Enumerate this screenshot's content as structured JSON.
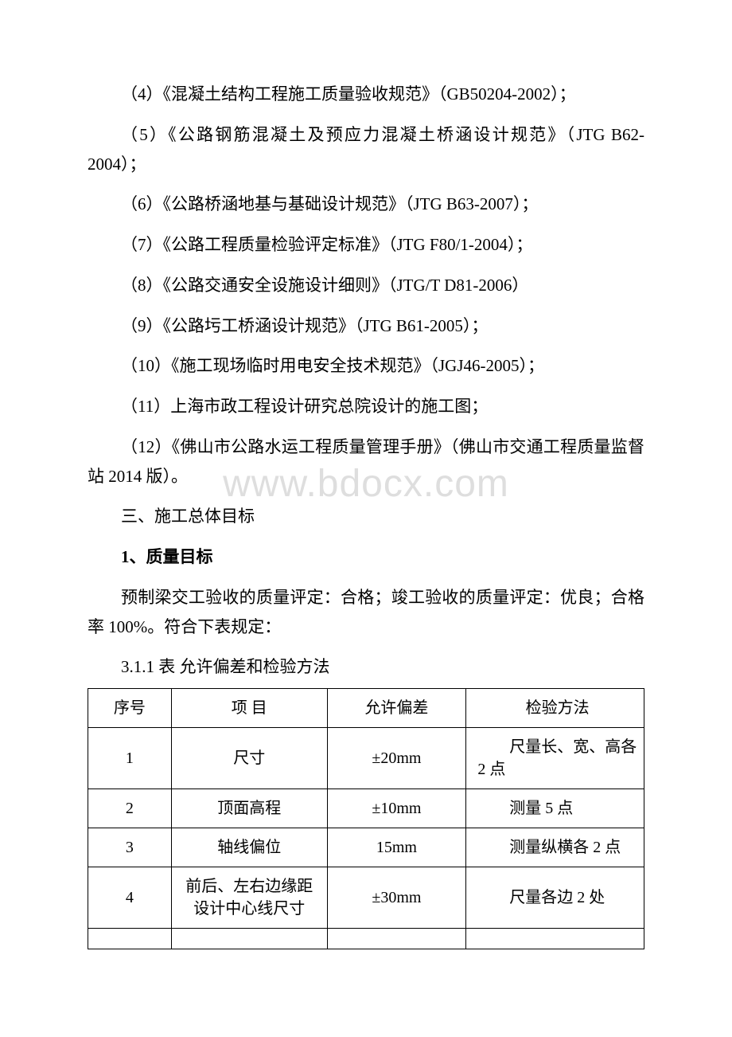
{
  "watermark": "www.bdocx.com",
  "paragraphs": {
    "p4": "（4）《混凝土结构工程施工质量验收规范》（GB50204-2002）；",
    "p5": "（5）《公路钢筋混凝土及预应力混凝土桥涵设计规范》（JTG B62-2004）；",
    "p6": "（6）《公路桥涵地基与基础设计规范》（JTG B63-2007）；",
    "p7": "（7）《公路工程质量检验评定标准》（JTG F80/1-2004）；",
    "p8": "（8）《公路交通安全设施设计细则》（JTG/T D81-2006）",
    "p9": "（9）《公路圬工桥涵设计规范》（JTG B61-2005）；",
    "p10": "（10）《施工现场临时用电安全技术规范》（JGJ46-2005）；",
    "p11": "（11）上海市政工程设计研究总院设计的施工图；",
    "p12": "（12）《佛山市公路水运工程质量管理手册》（佛山市交通工程质量监督站 2014 版）。",
    "section3": "三、施工总体目标",
    "quality_heading": "1、质量目标",
    "quality_body": "预制梁交工验收的质量评定：合格；竣工验收的质量评定：优良；合格率 100%。符合下表规定：",
    "table_caption": "3.1.1 表 允许偏差和检验方法"
  },
  "table": {
    "headers": {
      "seq": "序号",
      "item": "项 目",
      "deviation": "允许偏差",
      "method": "检验方法"
    },
    "rows": [
      {
        "seq": "1",
        "item": "尺寸",
        "deviation": "±20mm",
        "method": "　　尺量长、宽、高各 2 点"
      },
      {
        "seq": "2",
        "item": "顶面高程",
        "deviation": "±10mm",
        "method": "　　测量 5 点"
      },
      {
        "seq": "3",
        "item": "轴线偏位",
        "deviation": "15mm",
        "method": "　　测量纵横各 2 点"
      },
      {
        "seq": "4",
        "item": "前后、左右边缘距设计中心线尺寸",
        "deviation": "±30mm",
        "method": "　　尺量各边 2 处"
      }
    ]
  },
  "styles": {
    "background_color": "#ffffff",
    "text_color": "#000000",
    "watermark_color": "#dedede",
    "border_color": "#000000",
    "body_fontsize": 21,
    "table_fontsize": 20,
    "watermark_fontsize": 48,
    "line_height": 1.75
  }
}
